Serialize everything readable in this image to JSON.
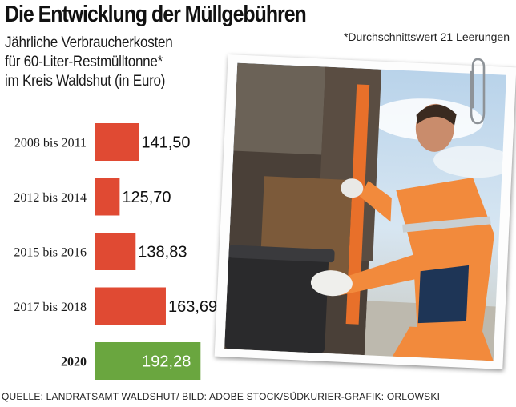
{
  "header": {
    "title": "Die Entwicklung der Müllgebühren",
    "subtitle_lines": [
      "Jährliche Verbraucherkosten",
      "für 60-Liter-Restmülltonne*",
      "im Kreis Waldshut (in Euro)"
    ],
    "footnote": "*Durchschnittswert 21 Leerungen"
  },
  "footer": {
    "source": "QUELLE: LANDRATSAMT WALDSHUT/ BILD: ADOBE STOCK/SÜDKURIER-GRAFIK: ORLOWSKI"
  },
  "colors": {
    "bar_default": "#e04a33",
    "bar_highlight": "#6aa63f",
    "highlight_label": "#ffffff"
  },
  "chart_data": {
    "type": "bar",
    "orientation": "horizontal",
    "title": "Die Entwicklung der Müllgebühren",
    "categories": [
      "2008 bis 2011",
      "2012 bis 2014",
      "2015 bis 2016",
      "2017 bis 2018",
      "2020"
    ],
    "values": [
      141.5,
      125.7,
      138.83,
      163.69,
      192.28
    ],
    "value_labels": [
      "141,50",
      "125,70",
      "138,83",
      "163,69",
      "192,28"
    ],
    "highlight_index": 4,
    "xlim": [
      105,
      200
    ],
    "grid": false,
    "legend": "none"
  }
}
